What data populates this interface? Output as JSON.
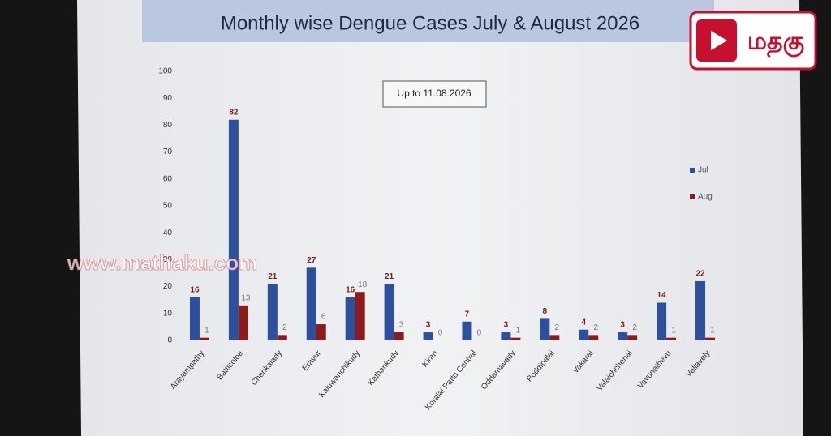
{
  "chart_data": {
    "type": "bar",
    "title": "Monthly wise Dengue Cases  July & August 2026",
    "annotation": "Up to 11.08.2026",
    "watermark": "www.mathaku.com",
    "logo_text": "மதகு",
    "categories": [
      "Arayampathy",
      "Batticoloa",
      "Chenkalady",
      "Eravur",
      "Kaluwanchikudy",
      "Kathankudy",
      "Kiran",
      "Koralai Pattu Central",
      "Oddamavady",
      "Poddipalai",
      "Vakarai",
      "Valaichchenai",
      "Vavunathevu",
      "Vellavely"
    ],
    "series": [
      {
        "name": "Jul",
        "color": "#2d4f9c",
        "values": [
          16,
          82,
          21,
          27,
          16,
          21,
          3,
          7,
          3,
          8,
          4,
          3,
          14,
          22
        ]
      },
      {
        "name": "Aug",
        "color": "#8a1c1c",
        "values": [
          1,
          13,
          2,
          6,
          18,
          3,
          0,
          0,
          1,
          2,
          2,
          2,
          1,
          1
        ]
      }
    ],
    "ylim": [
      0,
      100
    ],
    "yticks": [
      0,
      10,
      20,
      30,
      40,
      50,
      60,
      70,
      80,
      90,
      100
    ],
    "grid": false,
    "legend": "right"
  }
}
